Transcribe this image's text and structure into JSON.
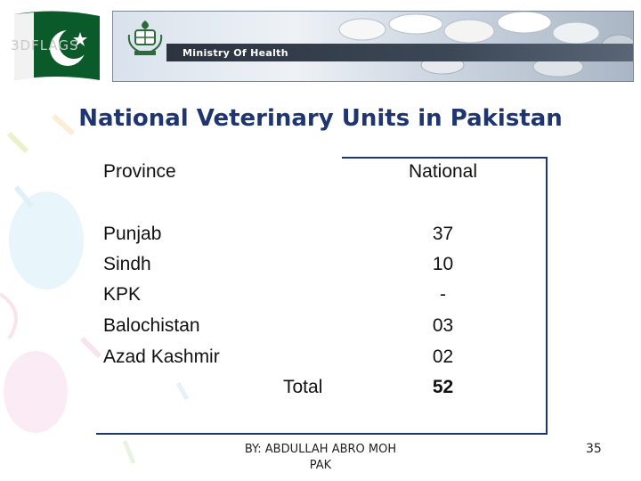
{
  "header": {
    "ministry_label": "Ministry Of Health",
    "flag_watermark": "3DFLAGS"
  },
  "slide": {
    "title": "National Veterinary Units in Pakistan",
    "table": {
      "headers": {
        "province": "Province",
        "national": "National"
      },
      "rows": [
        {
          "province": "Punjab",
          "national": "37"
        },
        {
          "province": "Sindh",
          "national": "10"
        },
        {
          "province": "KPK",
          "national": "-"
        },
        {
          "province": "Balochistan",
          "national": "03"
        },
        {
          "province": "Azad Kashmir",
          "national": "02"
        }
      ],
      "total": {
        "label": "Total",
        "value": "52"
      }
    }
  },
  "footer": {
    "author_line1": "BY: ABDULLAH ABRO MOH",
    "author_line2": "PAK",
    "page_number": "35"
  },
  "colors": {
    "title": "#1f3570",
    "frame": "#1f3570",
    "flag_green": "#0b5a2a"
  },
  "icons": [
    "pakistan-flag-icon",
    "state-emblem-icon",
    "balloon-decoration"
  ]
}
